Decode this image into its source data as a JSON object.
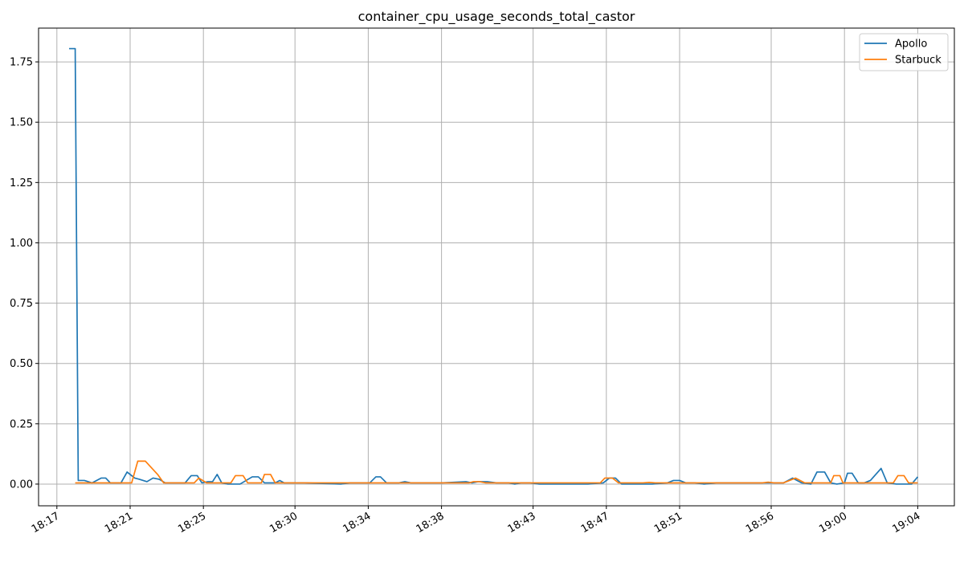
{
  "chart_data": {
    "type": "line",
    "title": "container_cpu_usage_seconds_total_castor",
    "xlabel": "",
    "ylabel": "",
    "ylim": [
      -0.09,
      1.89
    ],
    "xlim": [
      "18:16",
      "19:06"
    ],
    "grid": true,
    "legend_position": "top-right",
    "x_ticks": [
      "18:17",
      "18:21",
      "18:25",
      "18:30",
      "18:34",
      "18:38",
      "18:43",
      "18:47",
      "18:51",
      "18:56",
      "19:00",
      "19:04"
    ],
    "y_ticks": [
      "0.00",
      "0.25",
      "0.50",
      "0.75",
      "1.00",
      "1.25",
      "1.50",
      "1.75"
    ],
    "series": [
      {
        "name": "Apollo",
        "color": "#1f77b4",
        "points": [
          [
            "18:17:40",
            1.805
          ],
          [
            "18:18:00",
            1.805
          ],
          [
            "18:18:10",
            0.015
          ],
          [
            "18:18:30",
            0.015
          ],
          [
            "18:18:55",
            0.005
          ],
          [
            "18:19:25",
            0.025
          ],
          [
            "18:19:40",
            0.025
          ],
          [
            "18:19:55",
            0.005
          ],
          [
            "18:20:30",
            0.005
          ],
          [
            "18:20:50",
            0.05
          ],
          [
            "18:21:15",
            0.025
          ],
          [
            "18:21:30",
            0.02
          ],
          [
            "18:21:55",
            0.01
          ],
          [
            "18:22:15",
            0.025
          ],
          [
            "18:22:35",
            0.02
          ],
          [
            "18:22:55",
            0.005
          ],
          [
            "18:23:30",
            0.005
          ],
          [
            "18:24:00",
            0.005
          ],
          [
            "18:24:20",
            0.035
          ],
          [
            "18:24:40",
            0.035
          ],
          [
            "18:24:55",
            0.005
          ],
          [
            "18:25:15",
            0.01
          ],
          [
            "18:25:30",
            0.01
          ],
          [
            "18:25:45",
            0.04
          ],
          [
            "18:26:00",
            0.005
          ],
          [
            "18:26:20",
            0.0
          ],
          [
            "18:27:00",
            0.0
          ],
          [
            "18:27:40",
            0.03
          ],
          [
            "18:28:00",
            0.03
          ],
          [
            "18:28:20",
            0.005
          ],
          [
            "18:28:55",
            0.005
          ],
          [
            "18:29:10",
            0.015
          ],
          [
            "18:29:25",
            0.005
          ],
          [
            "18:30:30",
            0.005
          ],
          [
            "18:32:30",
            0.0
          ],
          [
            "18:33:00",
            0.005
          ],
          [
            "18:34:05",
            0.005
          ],
          [
            "18:34:25",
            0.03
          ],
          [
            "18:34:40",
            0.03
          ],
          [
            "18:35:00",
            0.005
          ],
          [
            "18:35:40",
            0.005
          ],
          [
            "18:36:00",
            0.01
          ],
          [
            "18:36:20",
            0.005
          ],
          [
            "18:38:00",
            0.005
          ],
          [
            "18:39:20",
            0.01
          ],
          [
            "18:39:40",
            0.005
          ],
          [
            "18:40:00",
            0.01
          ],
          [
            "18:40:30",
            0.01
          ],
          [
            "18:41:00",
            0.005
          ],
          [
            "18:41:40",
            0.005
          ],
          [
            "18:42:00",
            0.0
          ],
          [
            "18:42:20",
            0.005
          ],
          [
            "18:42:50",
            0.005
          ],
          [
            "18:43:20",
            0.0
          ],
          [
            "18:46:00",
            0.0
          ],
          [
            "18:46:50",
            0.005
          ],
          [
            "18:47:10",
            0.025
          ],
          [
            "18:47:30",
            0.025
          ],
          [
            "18:47:50",
            0.0
          ],
          [
            "18:49:30",
            0.0
          ],
          [
            "18:50:20",
            0.005
          ],
          [
            "18:50:40",
            0.015
          ],
          [
            "18:51:00",
            0.015
          ],
          [
            "18:51:20",
            0.005
          ],
          [
            "18:51:50",
            0.005
          ],
          [
            "18:52:20",
            0.0
          ],
          [
            "18:53:00",
            0.005
          ],
          [
            "18:55:00",
            0.005
          ],
          [
            "18:56:40",
            0.005
          ],
          [
            "18:57:10",
            0.025
          ],
          [
            "18:57:40",
            0.005
          ],
          [
            "18:58:10",
            0.0
          ],
          [
            "18:58:30",
            0.05
          ],
          [
            "18:58:55",
            0.05
          ],
          [
            "18:59:15",
            0.005
          ],
          [
            "18:59:35",
            0.0
          ],
          [
            "19:00:00",
            0.005
          ],
          [
            "19:00:10",
            0.045
          ],
          [
            "19:00:25",
            0.045
          ],
          [
            "19:00:45",
            0.005
          ],
          [
            "19:01:05",
            0.005
          ],
          [
            "19:01:25",
            0.015
          ],
          [
            "19:02:00",
            0.065
          ],
          [
            "19:02:20",
            0.005
          ],
          [
            "19:02:50",
            0.0
          ],
          [
            "19:03:40",
            0.0
          ],
          [
            "19:04:00",
            0.03
          ]
        ]
      },
      {
        "name": "Starbuck",
        "color": "#ff7f0e",
        "points": [
          [
            "18:18:00",
            0.005
          ],
          [
            "18:21:05",
            0.005
          ],
          [
            "18:21:25",
            0.095
          ],
          [
            "18:21:50",
            0.095
          ],
          [
            "18:22:30",
            0.04
          ],
          [
            "18:22:50",
            0.005
          ],
          [
            "18:24:30",
            0.005
          ],
          [
            "18:24:45",
            0.025
          ],
          [
            "18:25:10",
            0.005
          ],
          [
            "18:26:30",
            0.005
          ],
          [
            "18:26:45",
            0.035
          ],
          [
            "18:27:10",
            0.035
          ],
          [
            "18:27:25",
            0.005
          ],
          [
            "18:28:10",
            0.005
          ],
          [
            "18:28:20",
            0.04
          ],
          [
            "18:28:40",
            0.04
          ],
          [
            "18:28:55",
            0.005
          ],
          [
            "18:39:30",
            0.005
          ],
          [
            "18:39:45",
            0.01
          ],
          [
            "18:40:05",
            0.01
          ],
          [
            "18:40:25",
            0.005
          ],
          [
            "18:46:40",
            0.005
          ],
          [
            "18:46:55",
            0.025
          ],
          [
            "18:47:20",
            0.025
          ],
          [
            "18:47:40",
            0.005
          ],
          [
            "18:49:00",
            0.005
          ],
          [
            "18:49:20",
            0.007
          ],
          [
            "18:49:40",
            0.005
          ],
          [
            "18:55:30",
            0.005
          ],
          [
            "18:55:50",
            0.008
          ],
          [
            "18:56:10",
            0.005
          ],
          [
            "18:56:40",
            0.005
          ],
          [
            "18:57:00",
            0.015
          ],
          [
            "18:57:20",
            0.025
          ],
          [
            "18:57:50",
            0.005
          ],
          [
            "18:59:15",
            0.005
          ],
          [
            "18:59:25",
            0.035
          ],
          [
            "18:59:45",
            0.035
          ],
          [
            "18:59:55",
            0.005
          ],
          [
            "19:02:40",
            0.005
          ],
          [
            "19:02:55",
            0.035
          ],
          [
            "19:03:15",
            0.035
          ],
          [
            "19:03:30",
            0.005
          ],
          [
            "19:04:00",
            0.005
          ]
        ]
      }
    ]
  }
}
